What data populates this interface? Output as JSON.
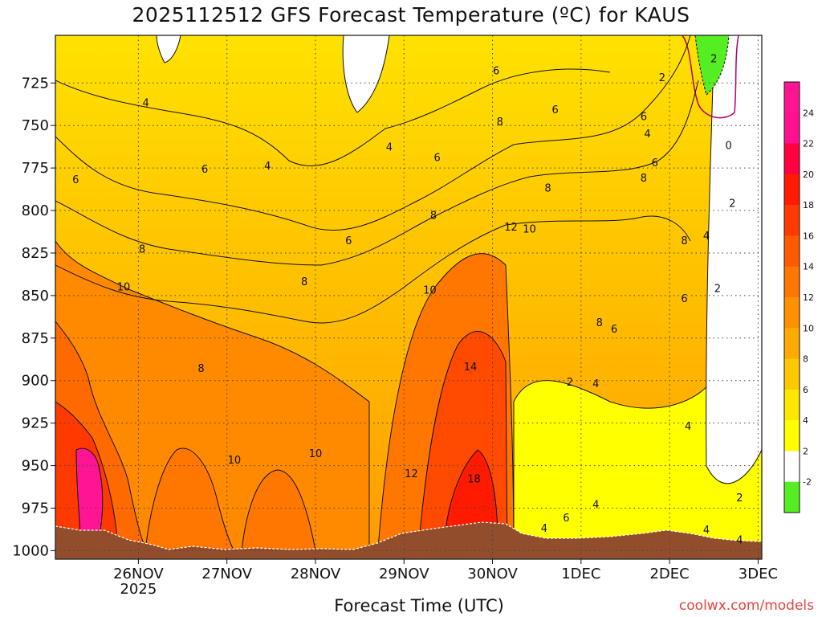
{
  "title": "2025112512 GFS Forecast Temperature (ºC) for KAUS",
  "xlabel": "Forecast Time (UTC)",
  "credit": "coolwx.com/models",
  "colors": {
    "ground": "#924e2c",
    "green": "#55ee22",
    "yellow": "#ffff00",
    "light_yellow": "#ffe600",
    "grid": "#444444",
    "pink_contour": "#b0006a"
  },
  "chart_data": {
    "type": "heatmap",
    "title": "2025112512 GFS Forecast Temperature (ºC) for KAUS",
    "xlabel": "Forecast Time (UTC)",
    "ylabel": "",
    "y_axis": {
      "reversed": true,
      "ylim": [
        1005,
        697
      ],
      "ticks": [
        725,
        750,
        775,
        800,
        825,
        850,
        875,
        900,
        925,
        950,
        975,
        1000
      ],
      "grid": "dotted"
    },
    "x_axis": {
      "unit": "forecast hour",
      "xlim": [
        -10.5,
        181
      ],
      "ticks": [
        {
          "hour": 12,
          "label": "26NOV",
          "sublabel": "2025"
        },
        {
          "hour": 36,
          "label": "27NOV"
        },
        {
          "hour": 60,
          "label": "28NOV"
        },
        {
          "hour": 84,
          "label": "29NOV"
        },
        {
          "hour": 108,
          "label": "30NOV"
        },
        {
          "hour": 132,
          "label": "1DEC"
        },
        {
          "hour": 156,
          "label": "2DEC"
        },
        {
          "hour": 180,
          "label": "3DEC"
        }
      ],
      "grid": "dotted"
    },
    "colorbar": {
      "levels": [
        -2,
        2,
        4,
        6,
        8,
        10,
        12,
        14,
        16,
        18,
        20,
        22,
        24
      ],
      "colors": [
        "#55ee22",
        "#ffffff",
        "#ffff00",
        "#ffe600",
        "#ffc800",
        "#ffaa00",
        "#ff9100",
        "#ff7700",
        "#ff5a00",
        "#ff3a00",
        "#ff1a00",
        "#ff0040",
        "#ff1090",
        "#ff1493"
      ]
    },
    "contour_labels": [
      {
        "hour": 14,
        "p": 737,
        "v": "4"
      },
      {
        "hour": -5,
        "p": 782,
        "v": "6"
      },
      {
        "hour": 13,
        "p": 823,
        "v": "8"
      },
      {
        "hour": 8,
        "p": 845,
        "v": "10"
      },
      {
        "hour": 29,
        "p": 893,
        "v": "8"
      },
      {
        "hour": 30,
        "p": 776,
        "v": "6"
      },
      {
        "hour": 47,
        "p": 774,
        "v": "4"
      },
      {
        "hour": 57,
        "p": 842,
        "v": "8"
      },
      {
        "hour": 38,
        "p": 947,
        "v": "10"
      },
      {
        "hour": 60,
        "p": 943,
        "v": "10"
      },
      {
        "hour": 69,
        "p": 818,
        "v": "6"
      },
      {
        "hour": 80,
        "p": 763,
        "v": "4"
      },
      {
        "hour": 93,
        "p": 769,
        "v": "6"
      },
      {
        "hour": 92,
        "p": 803,
        "v": "8"
      },
      {
        "hour": 91,
        "p": 847,
        "v": "10"
      },
      {
        "hour": 86,
        "p": 955,
        "v": "12"
      },
      {
        "hour": 102,
        "p": 892,
        "v": "14"
      },
      {
        "hour": 103,
        "p": 958,
        "v": "18"
      },
      {
        "hour": 109,
        "p": 718,
        "v": "6"
      },
      {
        "hour": 110,
        "p": 748,
        "v": "8"
      },
      {
        "hour": 113,
        "p": 810,
        "v": "12"
      },
      {
        "hour": 118,
        "p": 811,
        "v": "10"
      },
      {
        "hour": 125,
        "p": 741,
        "v": "6"
      },
      {
        "hour": 123,
        "p": 787,
        "v": "8"
      },
      {
        "hour": 122,
        "p": 987,
        "v": "4"
      },
      {
        "hour": 128,
        "p": 981,
        "v": "6"
      },
      {
        "hour": 129,
        "p": 901,
        "v": "2"
      },
      {
        "hour": 136,
        "p": 902,
        "v": "4"
      },
      {
        "hour": 136,
        "p": 973,
        "v": "4"
      },
      {
        "hour": 137,
        "p": 866,
        "v": "8"
      },
      {
        "hour": 141,
        "p": 870,
        "v": "6"
      },
      {
        "hour": 149,
        "p": 745,
        "v": "6"
      },
      {
        "hour": 150,
        "p": 755,
        "v": "4"
      },
      {
        "hour": 152,
        "p": 772,
        "v": "6"
      },
      {
        "hour": 149,
        "p": 781,
        "v": "8"
      },
      {
        "hour": 154,
        "p": 722,
        "v": "2"
      },
      {
        "hour": 160,
        "p": 818,
        "v": "8"
      },
      {
        "hour": 166,
        "p": 815,
        "v": "4"
      },
      {
        "hour": 160,
        "p": 852,
        "v": "6"
      },
      {
        "hour": 161,
        "p": 927,
        "v": "4"
      },
      {
        "hour": 166,
        "p": 988,
        "v": "4"
      },
      {
        "hour": 168,
        "p": 711,
        "v": "2"
      },
      {
        "hour": 169,
        "p": 846,
        "v": "2"
      },
      {
        "hour": 172,
        "p": 762,
        "v": "0"
      },
      {
        "hour": 173,
        "p": 796,
        "v": "2"
      },
      {
        "hour": 175,
        "p": 969,
        "v": "2"
      },
      {
        "hour": 175,
        "p": 994,
        "v": "4"
      }
    ]
  }
}
